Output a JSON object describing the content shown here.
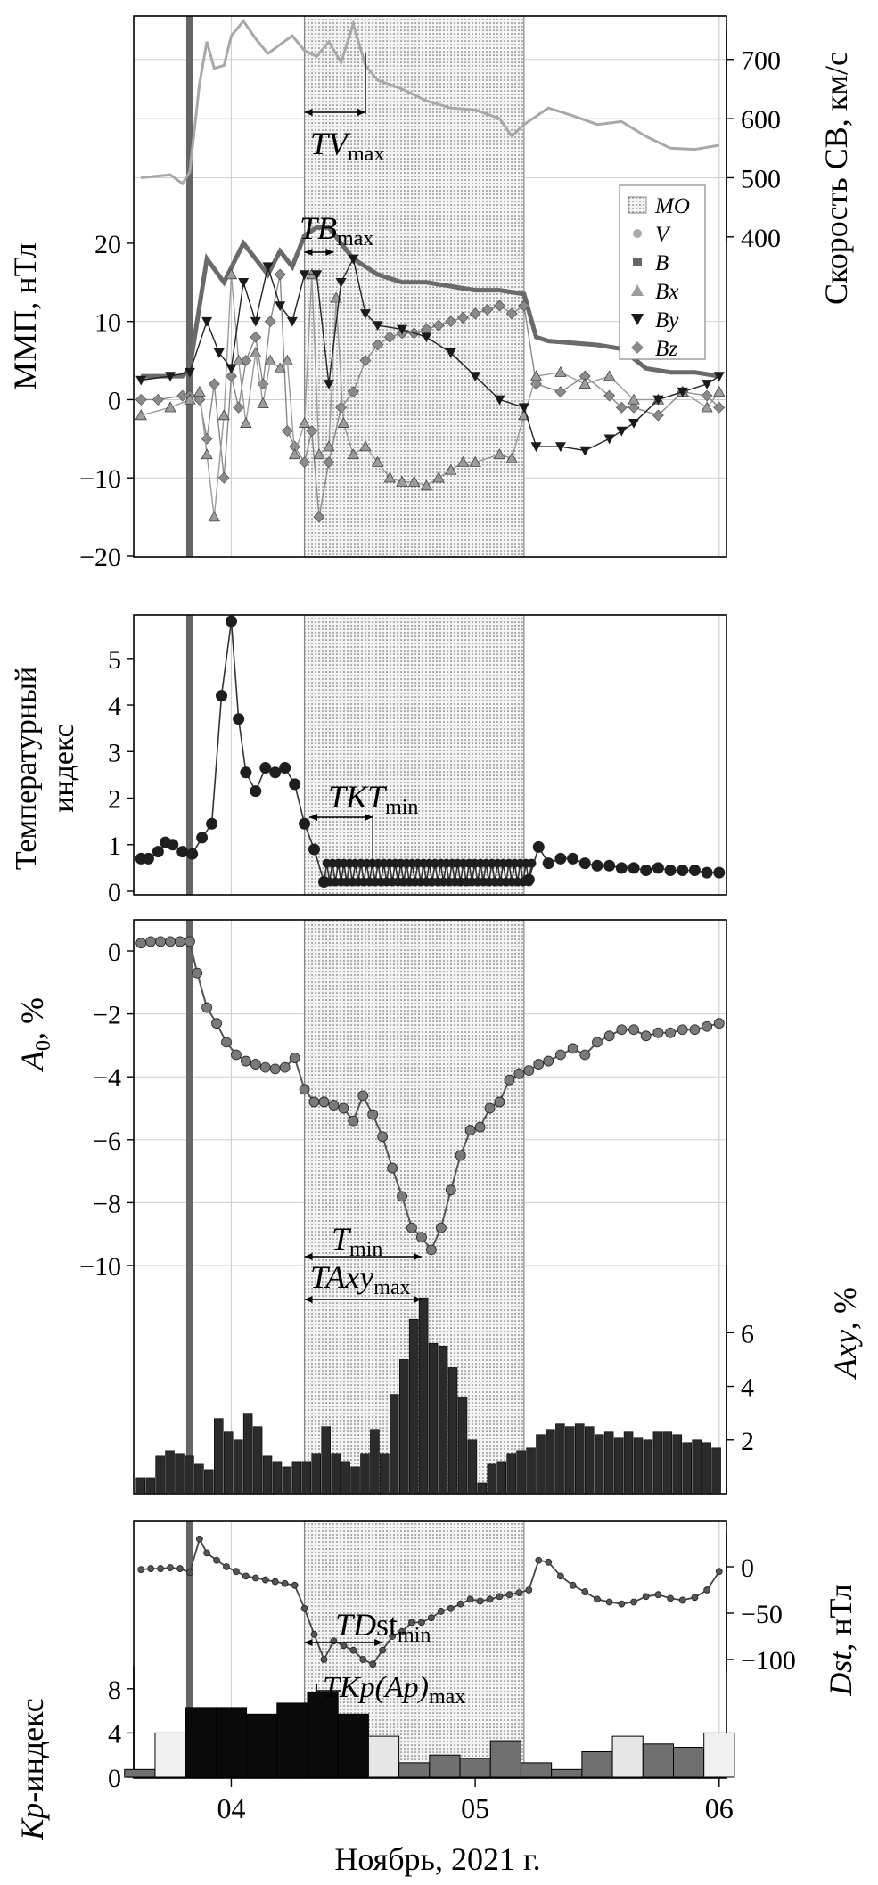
{
  "figure": {
    "xlabel": "Ноябрь, 2021 г.",
    "x_ticks": [
      "04",
      "05",
      "06"
    ],
    "mo_interval": [
      4.3,
      5.2
    ],
    "event_line": 3.83
  },
  "chart_data": [
    {
      "type": "line",
      "panel": "imf",
      "ylabel_left": "ММП, нТл",
      "ylabel_right": "Скорость СВ, км/с",
      "ylim_left": [
        -20,
        25
      ],
      "left_ticks": [
        "20",
        "10",
        "0",
        "−10",
        "−20"
      ],
      "right_ticks": [
        "700",
        "600",
        "500",
        "400"
      ],
      "ylim_right": [
        225,
        790
      ],
      "legend": {
        "position": "right",
        "entries": [
          "MO",
          "V",
          "B",
          "Bx",
          "By",
          "Bz"
        ]
      },
      "annotations": [
        {
          "text": "TV",
          "subscript": "max"
        },
        {
          "text": "TB",
          "subscript": "max"
        }
      ],
      "series": [
        {
          "name": "V",
          "x": [
            3.63,
            3.75,
            3.8,
            3.83,
            3.87,
            3.9,
            3.93,
            3.97,
            4.0,
            4.05,
            4.1,
            4.15,
            4.2,
            4.25,
            4.3,
            4.35,
            4.4,
            4.45,
            4.5,
            4.55,
            4.6,
            4.7,
            4.8,
            4.9,
            5.0,
            5.1,
            5.15,
            5.2,
            5.3,
            5.4,
            5.5,
            5.6,
            5.7,
            5.8,
            5.9,
            6.0
          ],
          "values": [
            500,
            505,
            490,
            510,
            660,
            730,
            685,
            690,
            740,
            765,
            735,
            710,
            725,
            740,
            715,
            705,
            730,
            695,
            760,
            690,
            665,
            650,
            630,
            618,
            615,
            600,
            570,
            590,
            618,
            605,
            590,
            595,
            570,
            550,
            548,
            555
          ]
        },
        {
          "name": "B",
          "x": [
            3.63,
            3.8,
            3.83,
            3.9,
            3.97,
            4.05,
            4.15,
            4.2,
            4.25,
            4.3,
            4.35,
            4.4,
            4.45,
            4.5,
            4.6,
            4.7,
            4.8,
            4.9,
            5.0,
            5.1,
            5.2,
            5.25,
            5.3,
            5.5,
            5.6,
            5.7,
            5.8,
            5.9,
            6.0
          ],
          "values": [
            3,
            3,
            4,
            18,
            15,
            20,
            16,
            19,
            17,
            21,
            22,
            22,
            20,
            18,
            16,
            15,
            15,
            14.5,
            14,
            14,
            13.5,
            8,
            7.5,
            7,
            6.5,
            4,
            3.5,
            3.5,
            3
          ]
        },
        {
          "name": "Bx",
          "x": [
            3.63,
            3.75,
            3.83,
            3.87,
            3.9,
            3.93,
            3.97,
            4.0,
            4.03,
            4.06,
            4.1,
            4.13,
            4.16,
            4.2,
            4.23,
            4.26,
            4.3,
            4.33,
            4.36,
            4.4,
            4.43,
            4.46,
            4.5,
            4.55,
            4.6,
            4.65,
            4.7,
            4.75,
            4.8,
            4.85,
            4.9,
            4.95,
            5.0,
            5.1,
            5.15,
            5.2,
            5.25,
            5.35,
            5.45,
            5.55,
            5.65,
            5.75,
            5.85,
            5.95,
            6.0
          ],
          "values": [
            -2,
            -1,
            0,
            1,
            -7,
            -15,
            -2,
            16,
            5,
            -3,
            6,
            -0.5,
            5,
            4,
            5,
            -7,
            -3,
            16,
            -7,
            -6,
            13,
            -3,
            -7,
            -6,
            -8,
            -10,
            -10.5,
            -10.5,
            -11,
            -10,
            -9,
            -8,
            -8,
            -7,
            -7.5,
            -2,
            3,
            3.5,
            2,
            3,
            0,
            0,
            1,
            -1,
            1
          ]
        },
        {
          "name": "By",
          "x": [
            3.63,
            3.75,
            3.83,
            3.9,
            3.95,
            4.0,
            4.05,
            4.1,
            4.15,
            4.2,
            4.25,
            4.3,
            4.35,
            4.4,
            4.45,
            4.5,
            4.55,
            4.6,
            4.7,
            4.8,
            4.9,
            5.0,
            5.1,
            5.2,
            5.25,
            5.35,
            5.45,
            5.55,
            5.6,
            5.65,
            5.75,
            5.85,
            5.95,
            6.0
          ],
          "values": [
            2.5,
            3,
            3.5,
            10,
            6,
            4,
            15,
            10,
            17,
            12,
            10,
            16,
            16,
            2,
            15,
            18,
            11,
            9.5,
            9,
            8,
            6,
            3,
            0,
            -1,
            -6,
            -6,
            -6.5,
            -5,
            -4,
            -3,
            0,
            1,
            2,
            3
          ]
        },
        {
          "name": "Bz",
          "x": [
            3.63,
            3.7,
            3.8,
            3.83,
            3.87,
            3.9,
            3.93,
            3.97,
            4.0,
            4.03,
            4.06,
            4.1,
            4.13,
            4.16,
            4.2,
            4.23,
            4.26,
            4.3,
            4.33,
            4.36,
            4.4,
            4.45,
            4.5,
            4.55,
            4.6,
            4.65,
            4.7,
            4.75,
            4.8,
            4.85,
            4.9,
            4.95,
            5.0,
            5.05,
            5.1,
            5.15,
            5.2,
            5.25,
            5.35,
            5.45,
            5.55,
            5.6,
            5.65,
            5.75,
            5.85,
            5.95,
            6.0
          ],
          "values": [
            0,
            0,
            0.5,
            0.5,
            0,
            -5,
            2,
            -10,
            3,
            -1,
            5,
            8,
            2,
            10,
            16,
            -4,
            -6,
            -8,
            -4,
            -15,
            -8,
            -1,
            1,
            5,
            7,
            8,
            8.5,
            8.5,
            9,
            9.5,
            10,
            10.5,
            11,
            11.5,
            12,
            11,
            12,
            2,
            1,
            3,
            0.5,
            -1,
            -1,
            -2,
            1,
            0.5,
            -1
          ]
        }
      ]
    },
    {
      "type": "line",
      "panel": "temperature",
      "ylabel": "Температурный индекс",
      "ylim": [
        0,
        5.8
      ],
      "y_ticks": [
        "5",
        "4",
        "3",
        "2",
        "1",
        "0"
      ],
      "annotations": [
        {
          "text": "TKT",
          "subscript": "min"
        }
      ],
      "series": [
        {
          "name": "KT",
          "x": [
            3.63,
            3.66,
            3.7,
            3.73,
            3.76,
            3.8,
            3.84,
            3.88,
            3.92,
            3.96,
            4.0,
            4.03,
            4.06,
            4.1,
            4.14,
            4.18,
            4.22,
            4.26,
            4.3,
            4.34,
            4.38,
            5.22,
            5.26,
            5.3,
            5.35,
            5.4,
            5.45,
            5.5,
            5.55,
            5.6,
            5.65,
            5.7,
            5.75,
            5.8,
            5.85,
            5.9,
            5.95,
            6.0
          ],
          "values": [
            0.7,
            0.7,
            0.85,
            1.05,
            1.0,
            0.85,
            0.8,
            1.15,
            1.45,
            4.2,
            5.8,
            3.7,
            2.55,
            2.15,
            2.65,
            2.55,
            2.65,
            2.3,
            1.45,
            0.9,
            0.2,
            0.25,
            0.95,
            0.6,
            0.7,
            0.7,
            0.6,
            0.55,
            0.55,
            0.5,
            0.5,
            0.45,
            0.5,
            0.45,
            0.45,
            0.45,
            0.4,
            0.4
          ]
        },
        {
          "name": "KT_oscillation",
          "x_start": 4.38,
          "x_end": 5.22,
          "low": 0.2,
          "high": 0.6,
          "count": 37
        }
      ]
    },
    {
      "type": "line",
      "panel": "A0",
      "ylabel": "A0, %",
      "ylim": [
        -10.2,
        0.4
      ],
      "y_ticks": [
        "0",
        "−2",
        "−4",
        "−6",
        "−8",
        "−10"
      ],
      "annotations": [
        {
          "text": "T",
          "subscript": "min"
        }
      ],
      "series": [
        {
          "name": "A0",
          "x": [
            3.63,
            3.67,
            3.71,
            3.75,
            3.79,
            3.83,
            3.86,
            3.9,
            3.94,
            3.98,
            4.02,
            4.06,
            4.1,
            4.14,
            4.18,
            4.22,
            4.26,
            4.3,
            4.34,
            4.38,
            4.42,
            4.46,
            4.5,
            4.54,
            4.58,
            4.62,
            4.66,
            4.7,
            4.74,
            4.78,
            4.82,
            4.86,
            4.9,
            4.94,
            4.98,
            5.02,
            5.06,
            5.1,
            5.14,
            5.18,
            5.22,
            5.26,
            5.3,
            5.35,
            5.4,
            5.45,
            5.5,
            5.55,
            5.6,
            5.65,
            5.7,
            5.75,
            5.8,
            5.85,
            5.9,
            5.95,
            6.0
          ],
          "values": [
            0.25,
            0.3,
            0.3,
            0.3,
            0.3,
            0.3,
            -0.7,
            -1.8,
            -2.3,
            -2.9,
            -3.3,
            -3.5,
            -3.6,
            -3.7,
            -3.75,
            -3.7,
            -3.4,
            -4.4,
            -4.8,
            -4.8,
            -4.9,
            -5.0,
            -5.4,
            -4.6,
            -5.2,
            -5.9,
            -6.9,
            -7.8,
            -8.8,
            -9.1,
            -9.5,
            -8.8,
            -7.6,
            -6.5,
            -5.7,
            -5.6,
            -5.0,
            -4.8,
            -4.1,
            -3.9,
            -3.8,
            -3.6,
            -3.5,
            -3.3,
            -3.1,
            -3.3,
            -2.9,
            -2.7,
            -2.5,
            -2.5,
            -2.7,
            -2.6,
            -2.6,
            -2.5,
            -2.5,
            -2.4,
            -2.3
          ]
        }
      ]
    },
    {
      "type": "bar",
      "panel": "Axy",
      "ylabel": "Axy, %",
      "ylim": [
        0,
        8.5
      ],
      "y_ticks": [
        "6",
        "4",
        "2"
      ],
      "annotations": [
        {
          "text": "TAxy",
          "subscript": "max"
        }
      ],
      "x": [
        3.63,
        3.67,
        3.71,
        3.75,
        3.79,
        3.83,
        3.87,
        3.91,
        3.95,
        3.99,
        4.03,
        4.07,
        4.11,
        4.15,
        4.19,
        4.23,
        4.27,
        4.31,
        4.35,
        4.39,
        4.43,
        4.47,
        4.51,
        4.55,
        4.59,
        4.63,
        4.67,
        4.71,
        4.75,
        4.79,
        4.83,
        4.87,
        4.91,
        4.95,
        4.99,
        5.03,
        5.07,
        5.11,
        5.15,
        5.19,
        5.23,
        5.27,
        5.31,
        5.35,
        5.39,
        5.43,
        5.47,
        5.51,
        5.55,
        5.59,
        5.63,
        5.67,
        5.71,
        5.75,
        5.79,
        5.83,
        5.87,
        5.91,
        5.95,
        5.99
      ],
      "values": [
        0.6,
        0.6,
        1.4,
        1.6,
        1.5,
        1.4,
        1.1,
        0.9,
        2.8,
        2.3,
        2.0,
        3.0,
        2.5,
        1.4,
        1.2,
        1.0,
        1.2,
        1.2,
        1.5,
        2.5,
        1.5,
        1.2,
        1.0,
        1.5,
        2.4,
        1.5,
        3.7,
        5.0,
        6.5,
        7.3,
        5.6,
        5.5,
        4.7,
        3.6,
        2.0,
        0.4,
        1.1,
        1.2,
        1.5,
        1.6,
        1.7,
        2.2,
        2.4,
        2.6,
        2.5,
        2.6,
        2.5,
        2.2,
        2.3,
        2.1,
        2.3,
        2.1,
        2.0,
        2.3,
        2.3,
        2.2,
        1.9,
        2.0,
        1.9,
        1.7
      ]
    },
    {
      "type": "line",
      "panel": "Dst",
      "ylabel_right": "Dst, нТл",
      "ylim": [
        -125,
        40
      ],
      "right_ticks": [
        "0",
        "−50",
        "−100"
      ],
      "annotations": [
        {
          "text": "TD",
          "text2": "st",
          "subscript": "min"
        }
      ],
      "series": [
        {
          "name": "Dst",
          "x": [
            3.63,
            3.67,
            3.71,
            3.75,
            3.79,
            3.83,
            3.87,
            3.9,
            3.94,
            3.98,
            4.02,
            4.06,
            4.1,
            4.14,
            4.18,
            4.22,
            4.26,
            4.3,
            4.34,
            4.38,
            4.42,
            4.46,
            4.5,
            4.54,
            4.58,
            4.62,
            4.66,
            4.7,
            4.74,
            4.78,
            4.82,
            4.86,
            4.9,
            4.94,
            4.98,
            5.02,
            5.06,
            5.1,
            5.14,
            5.18,
            5.22,
            5.26,
            5.3,
            5.35,
            5.4,
            5.45,
            5.5,
            5.55,
            5.6,
            5.65,
            5.7,
            5.75,
            5.8,
            5.85,
            5.9,
            5.95,
            6.0
          ],
          "values": [
            -3,
            -2,
            -2,
            -1,
            -2,
            -6,
            30,
            15,
            7,
            0,
            -5,
            -10,
            -12,
            -14,
            -16,
            -18,
            -20,
            -45,
            -73,
            -100,
            -80,
            -85,
            -90,
            -100,
            -105,
            -90,
            -75,
            -70,
            -60,
            -60,
            -55,
            -48,
            -45,
            -40,
            -35,
            -37,
            -35,
            -32,
            -30,
            -28,
            -25,
            7,
            5,
            -10,
            -20,
            -27,
            -35,
            -38,
            -40,
            -38,
            -32,
            -30,
            -34,
            -36,
            -33,
            -25,
            -5
          ]
        }
      ]
    },
    {
      "type": "bar",
      "panel": "Kp",
      "ylabel": "Kp-индекс",
      "ylim": [
        0,
        10
      ],
      "y_ticks": [
        "8",
        "4",
        "0"
      ],
      "annotations": [
        {
          "text": "TKp(Ap)",
          "subscript": "max"
        }
      ],
      "x": [
        3.625,
        3.75,
        3.875,
        4.0,
        4.125,
        4.25,
        4.375,
        4.5,
        4.625,
        4.75,
        4.875,
        5.0,
        5.125,
        5.25,
        5.375,
        5.5,
        5.625,
        5.75,
        5.875,
        6.0
      ],
      "values": [
        0.7,
        4.0,
        6.3,
        6.3,
        5.7,
        6.7,
        7.7,
        5.7,
        3.7,
        1.3,
        2.0,
        1.7,
        3.3,
        1.3,
        0.7,
        2.3,
        3.7,
        3.0,
        2.7,
        4.0
      ]
    }
  ]
}
